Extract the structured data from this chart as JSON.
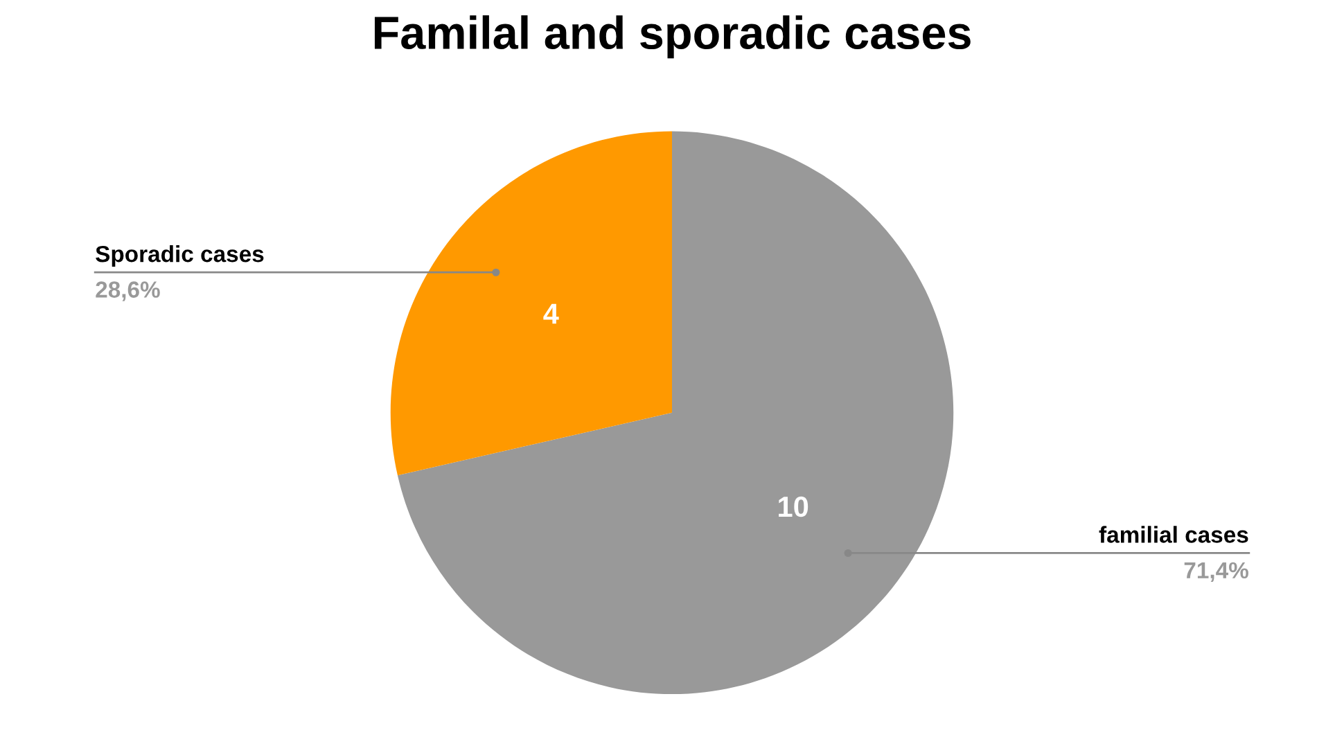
{
  "chart_data": {
    "type": "pie",
    "title": "Familal and sporadic cases",
    "categories": [
      "familial cases",
      "Sporadic cases"
    ],
    "values": [
      10,
      4
    ],
    "colors": [
      "#999999",
      "#ff9900"
    ],
    "data_labels": true,
    "annotations": [
      "71,4%",
      "28,6%"
    ],
    "legend": false
  }
}
